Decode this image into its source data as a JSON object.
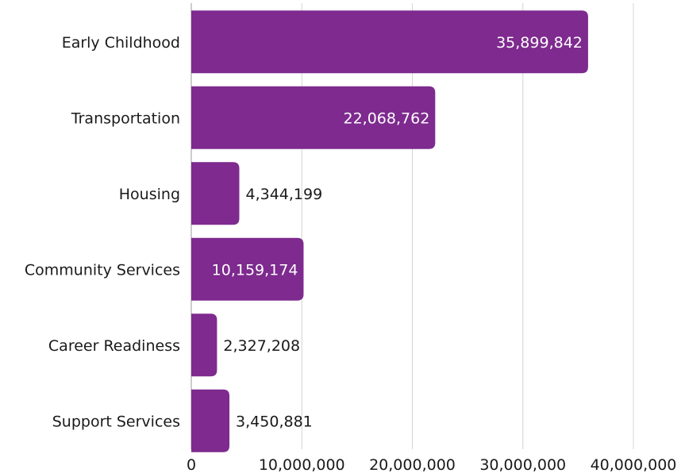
{
  "chart_data": {
    "type": "bar",
    "orientation": "horizontal",
    "categories": [
      "Early Childhood",
      "Transportation",
      "Housing",
      "Community Services",
      "Career Readiness",
      "Support Services"
    ],
    "values": [
      35899842,
      22068762,
      4344199,
      10159174,
      2327208,
      3450881
    ],
    "value_labels": [
      "35,899,842",
      "22,068,762",
      "4,344,199",
      "10,159,174",
      "2,327,208",
      "3,450,881"
    ],
    "xlim": [
      0,
      40000000
    ],
    "x_ticks": [
      0,
      10000000,
      20000000,
      30000000,
      40000000
    ],
    "x_tick_labels": [
      "0",
      "10,000,000",
      "20,000,000",
      "30,000,000",
      "40,000,000"
    ],
    "grid": true,
    "colors": {
      "bar": "#7e2a8f"
    }
  }
}
